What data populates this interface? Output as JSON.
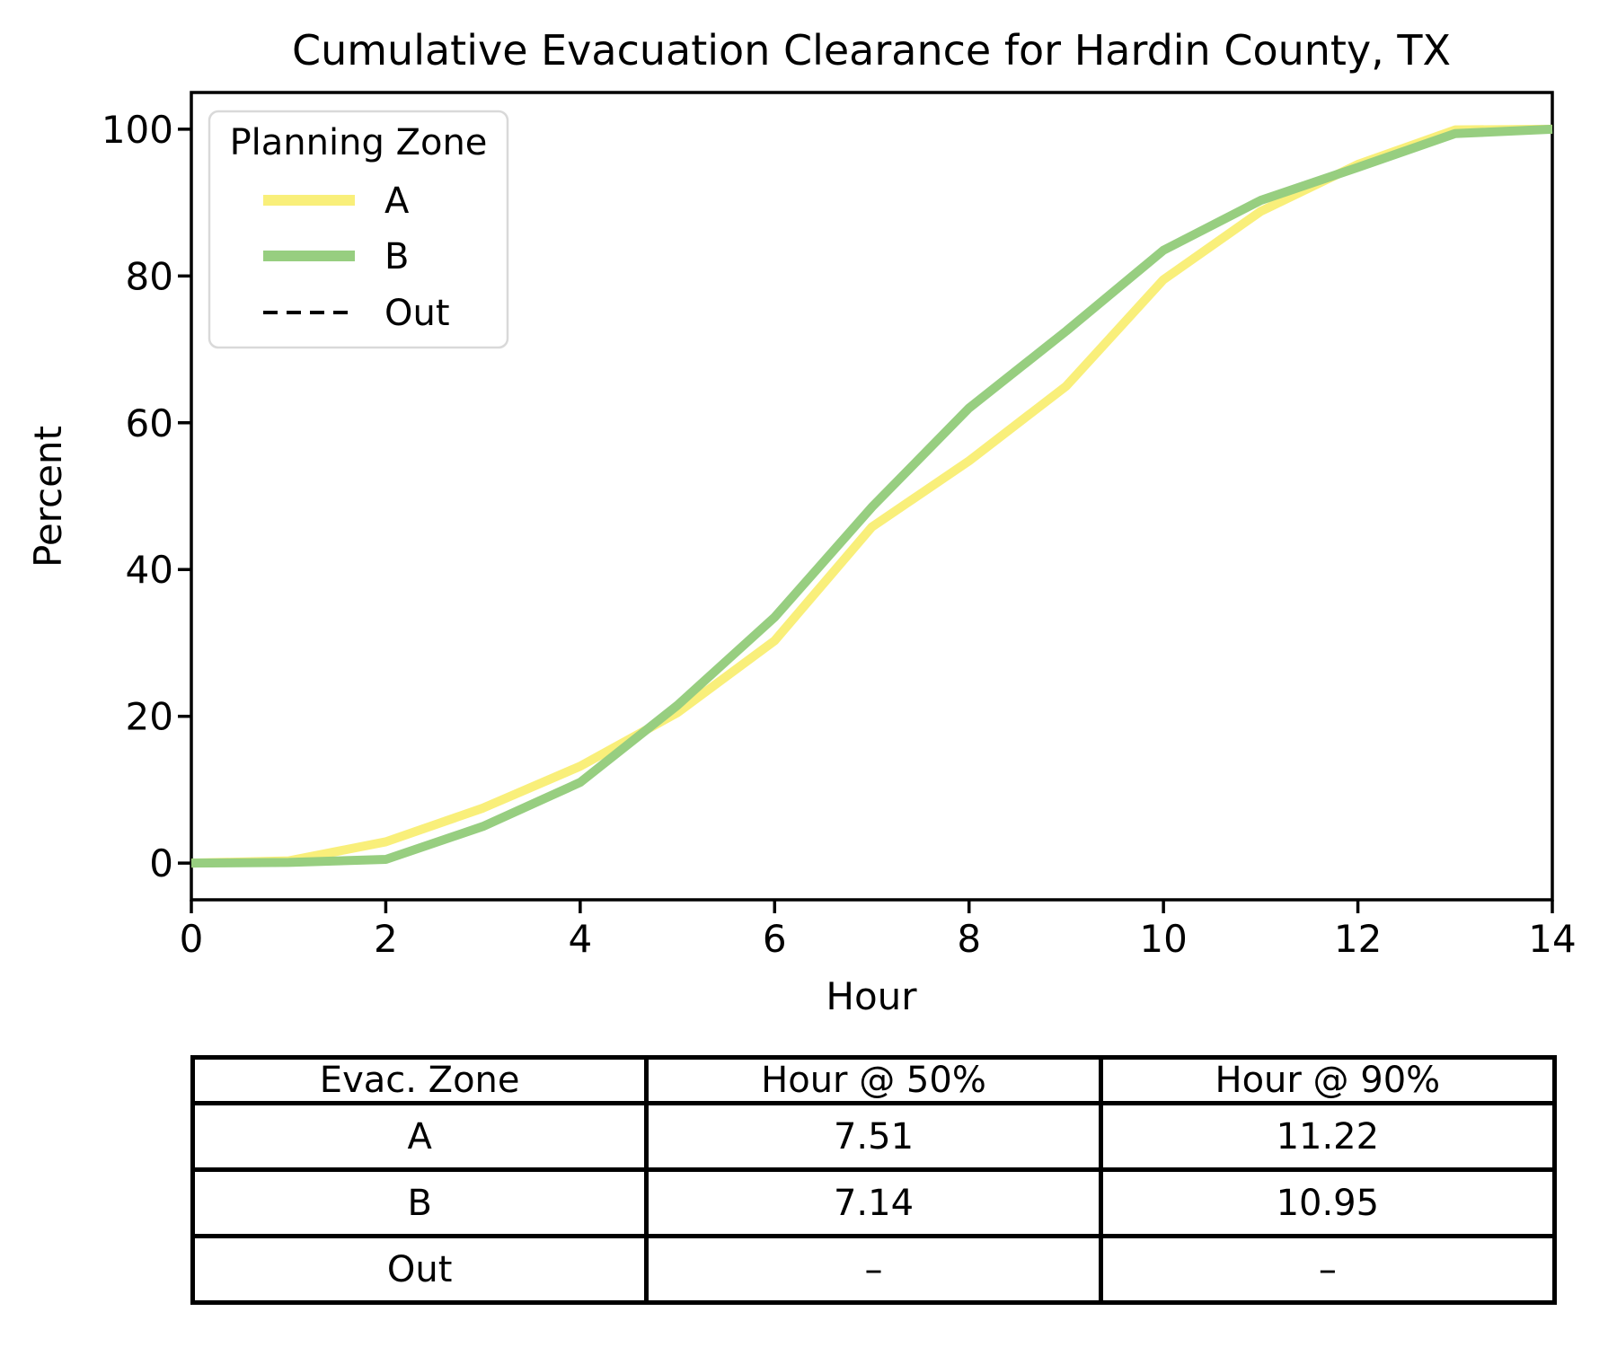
{
  "chart_data": {
    "type": "line",
    "title": "Cumulative Evacuation Clearance for Hardin County, TX",
    "xlabel": "Hour",
    "ylabel": "Percent",
    "xlim": [
      0,
      14
    ],
    "ylim": [
      0,
      100
    ],
    "xticks": [
      0,
      2,
      4,
      6,
      8,
      10,
      12,
      14
    ],
    "yticks": [
      0,
      20,
      40,
      60,
      80,
      100
    ],
    "grid": false,
    "legend_title": "Planning Zone",
    "legend_position": "upper left",
    "x": [
      0,
      1,
      2,
      3,
      4,
      5,
      6,
      7,
      8,
      9,
      10,
      11,
      12,
      13,
      14
    ],
    "series": [
      {
        "name": "A",
        "color": "#F9EF7A",
        "style": "solid",
        "values": [
          0,
          0.3,
          2.9,
          7.5,
          13.2,
          20.5,
          30.3,
          45.8,
          54.8,
          65.0,
          79.5,
          88.8,
          95.2,
          99.9,
          100
        ]
      },
      {
        "name": "B",
        "color": "#97CE80",
        "style": "solid",
        "values": [
          0,
          0.1,
          0.5,
          5.0,
          11.0,
          21.5,
          33.5,
          48.5,
          62.0,
          72.5,
          83.5,
          90.3,
          94.8,
          99.4,
          100
        ]
      },
      {
        "name": "Out",
        "color": "#000000",
        "style": "dashed",
        "values": []
      }
    ]
  },
  "table": {
    "columns": [
      "Evac. Zone",
      "Hour @ 50%",
      "Hour @ 90%"
    ],
    "rows": [
      [
        "A",
        "7.51",
        "11.22"
      ],
      [
        "B",
        "7.14",
        "10.95"
      ],
      [
        "Out",
        "–",
        "–"
      ]
    ]
  }
}
